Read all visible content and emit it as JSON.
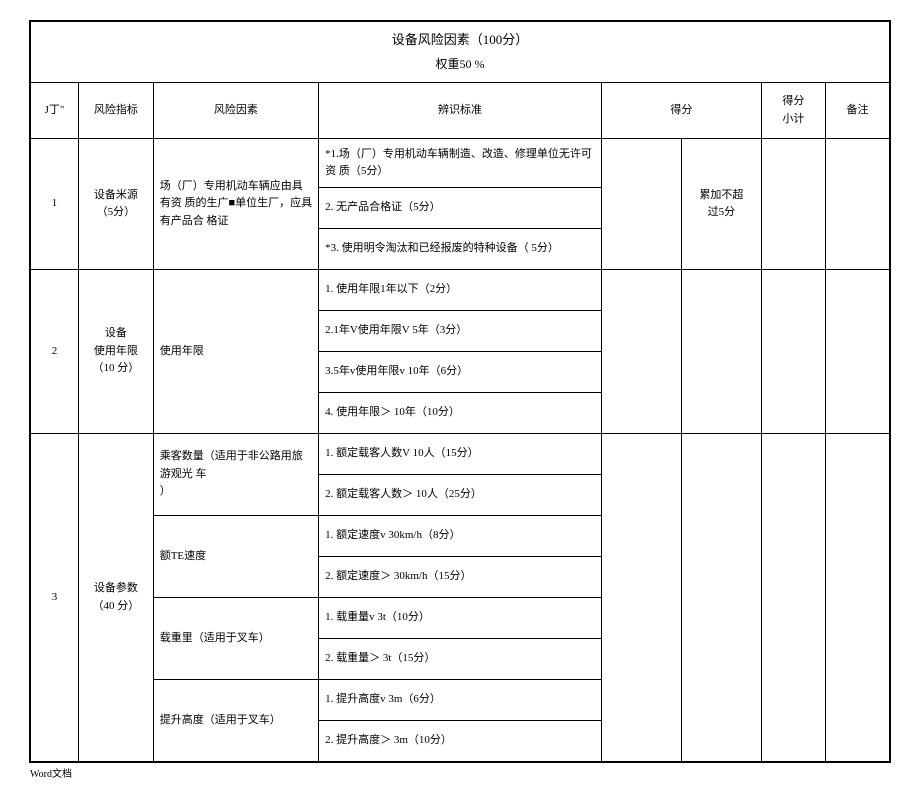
{
  "title": "设备风险因素（100分）",
  "subtitle": "权重50 %",
  "footer": "Word文档",
  "header": {
    "seq": "J丁\"",
    "indicator": "风险指标",
    "factor": "风险因素",
    "standard": "辨识标准",
    "score": "得分",
    "subtotal": "得分\n小计",
    "remark": "备注"
  },
  "rows": [
    {
      "seq": "1",
      "indicator": "设备米源\n（5分）",
      "factor": "场（厂）专用机动车辆应由具有资 质的生广■单位生厂，应具有产品合 格证",
      "standards": [
        "*1.场（厂）专用机动车辆制造、改造、修理单位无许可资 质（5分）",
        "2. 无产品合格证（5分）",
        "*3. 使用明令淘汰和已经报废的特种设备（     5分）"
      ],
      "score_note": "累加不超\n过5分"
    },
    {
      "seq": "2",
      "indicator": "设备\n使用年限\n（10 分）",
      "factor": "使用年限",
      "standards": [
        "1. 使用年限1年以下（2分）",
        "2.1年V使用年限V 5年（3分）",
        "3.5年v使用年限v 10年（6分）",
        "4. 使用年限＞ 10年（10分）"
      ]
    },
    {
      "seq": "3",
      "indicator": "设备参数\n（40 分）",
      "groups": [
        {
          "factor": "乘客数量（适用于非公路用旅游观光 车\n）",
          "standards": [
            "1. 额定载客人数V 10人（15分）",
            "2. 额定载客人数＞ 10人（25分）"
          ]
        },
        {
          "factor": "额TE速度",
          "standards": [
            "1. 额定速度v 30km/h（8分）",
            "2. 额定速度＞ 30km/h（15分）"
          ]
        },
        {
          "factor": "载重里（适用于叉车）",
          "standards": [
            "1. 载重量v 3t（10分）",
            "2. 载重量＞ 3t（15分）"
          ]
        },
        {
          "factor": "提升高度（适用于叉车）",
          "standards": [
            "1. 提升高度v 3m（6分）",
            "2. 提升高度＞ 3m（10分）"
          ]
        }
      ]
    }
  ]
}
